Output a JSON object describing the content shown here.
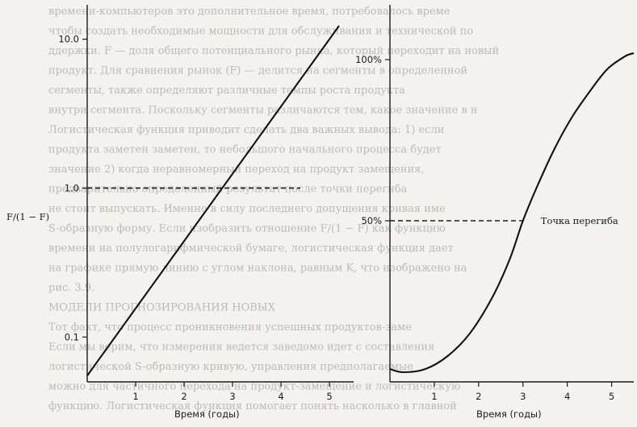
{
  "chart_data": [
    {
      "type": "line",
      "panel": "left",
      "scale_y": "log",
      "y_side_label": "F/(1 − F)",
      "xlabel": "Время (годы)",
      "ylabel": "",
      "x_ticks": [
        1,
        2,
        3,
        4,
        5
      ],
      "y_ticks": [
        {
          "value": 0.1,
          "label": "0.1"
        },
        {
          "value": 1.0,
          "label": "1.0"
        },
        {
          "value": 10.0,
          "label": "10.0"
        }
      ],
      "xlim": [
        0,
        5.5
      ],
      "ylim": [
        0.05,
        17
      ],
      "reference_line": {
        "y": 1.0,
        "style": "dashed"
      },
      "series": [
        {
          "x": [
            0,
            5.2
          ],
          "y": [
            0.055,
            12.3
          ]
        }
      ]
    },
    {
      "type": "line",
      "panel": "right",
      "xlabel": "Время (годы)",
      "ylabel": "",
      "x_ticks": [
        1,
        2,
        3,
        4,
        5
      ],
      "y_ticks": [
        {
          "value": 50,
          "label": "50%"
        },
        {
          "value": 100,
          "label": "100%"
        }
      ],
      "xlim": [
        0,
        5.5
      ],
      "ylim": [
        0,
        117
      ],
      "reference_line": {
        "y": 50,
        "style": "dashed"
      },
      "annotation": {
        "text": "Точка перегиба",
        "x": 3,
        "y": 50
      },
      "series": [
        {
          "x": [
            0,
            0.3,
            0.8,
            1.3,
            1.8,
            2.3,
            2.7,
            3.0,
            3.3,
            3.7,
            4.1,
            4.5,
            4.9,
            5.3,
            5.5
          ],
          "y": [
            4,
            3,
            4,
            8,
            15,
            26,
            38,
            50,
            60,
            72,
            82,
            90,
            97,
            101,
            102
          ]
        }
      ]
    }
  ],
  "background_text": [
    "времени-компьютеров это дополнительное время, потребовалось време",
    "чтобы создать необходимые мощности для обслуживания и технической по",
    "ддержки. F — доля общего потенциального рынка, который переходит на новый",
    "продукт. Для сравнения рынок (F) — делится на сегменты в определенной",
    "сегменты, также определяют различные темпы роста продукта",
    "внутри сегмента. Поскольку сегменты различаются тем, какое значение в н",
    "Логистическая функция приводит сделать два важных вывода: 1) если",
    "продукта заметен заметен, то небольшого начального процесса будет",
    "значение 2) когда неравномерный переход на продукт замещения,",
    "предварительно определенный результат после точки перегиба",
    "не стоит выпускать. Именно в силу последнего допущения кривая име",
    "S-образную форму. Если изобразить отношение F/(1 − F) как функцию",
    "времени на полулогарифмической бумаге, логистическая функция дает",
    "на графике прямую линию с углом наклона, равным K, что изображено на",
    "рис. 3.9.",
    "МОДЕЛИ ПРОГНОЗИРОВАНИЯ НОВЫХ",
    "Тот факт, что процесс проникновения успешных продуктов-заме",
    "Если мы верим, что измерения ведется заведомо идет с составления",
    "логистической S-образную кривую, управления предполагаемые",
    "можно для частичного перехода на продукт-замещение и логистическую",
    "функцию. Логистическая функция помогает понять насколько в главной"
  ]
}
